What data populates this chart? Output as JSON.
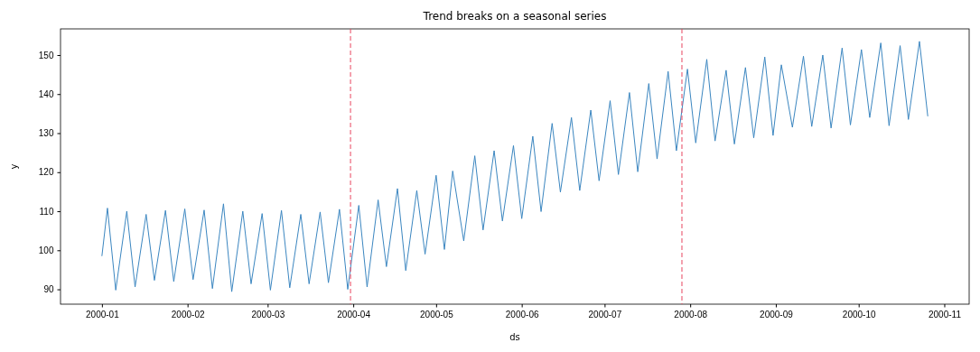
{
  "chart_data": {
    "type": "line",
    "title": "Trend breaks on a seasonal series",
    "xlabel": "ds",
    "ylabel": "y",
    "x": [
      "2000-01-01",
      "2000-01-03",
      "2000-01-06",
      "2000-01-10",
      "2000-01-13",
      "2000-01-17",
      "2000-01-20",
      "2000-01-24",
      "2000-01-27",
      "2000-01-31",
      "2000-02-03",
      "2000-02-07",
      "2000-02-10",
      "2000-02-14",
      "2000-02-17",
      "2000-02-21",
      "2000-02-24",
      "2000-02-28",
      "2000-03-02",
      "2000-03-06",
      "2000-03-09",
      "2000-03-13",
      "2000-03-16",
      "2000-03-20",
      "2000-03-23",
      "2000-03-27",
      "2000-03-30",
      "2000-04-03",
      "2000-04-06",
      "2000-04-10",
      "2000-04-13",
      "2000-04-17",
      "2000-04-20",
      "2000-04-24",
      "2000-04-27",
      "2000-05-01",
      "2000-05-04",
      "2000-05-07",
      "2000-05-11",
      "2000-05-15",
      "2000-05-18",
      "2000-05-22",
      "2000-05-25",
      "2000-05-29",
      "2000-06-01",
      "2000-06-05",
      "2000-06-08",
      "2000-06-12",
      "2000-06-15",
      "2000-06-19",
      "2000-06-22",
      "2000-06-26",
      "2000-06-29",
      "2000-07-03",
      "2000-07-06",
      "2000-07-10",
      "2000-07-13",
      "2000-07-17",
      "2000-07-20",
      "2000-07-24",
      "2000-07-27",
      "2000-07-31",
      "2000-08-03",
      "2000-08-07",
      "2000-08-10",
      "2000-08-14",
      "2000-08-17",
      "2000-08-21",
      "2000-08-24",
      "2000-08-28",
      "2000-08-31",
      "2000-09-03",
      "2000-09-07",
      "2000-09-11",
      "2000-09-14",
      "2000-09-18",
      "2000-09-21",
      "2000-09-25",
      "2000-09-28",
      "2000-10-02",
      "2000-10-05",
      "2000-10-09",
      "2000-10-12",
      "2000-10-16",
      "2000-10-19",
      "2000-10-23",
      "2000-10-26"
    ],
    "series": [
      {
        "color": "#3b86c0",
        "values": [
          98.6,
          110.8,
          89.8,
          110,
          90.6,
          109.2,
          92.3,
          110.2,
          92,
          110.6,
          92.5,
          110.3,
          90.2,
          111.9,
          89.4,
          110,
          91.4,
          109.4,
          89.8,
          110.2,
          90.4,
          109.2,
          91.4,
          109.8,
          91.7,
          110.5,
          90,
          111.5,
          90.6,
          112.9,
          95.8,
          115.8,
          94.8,
          115.3,
          99,
          119.2,
          100.2,
          120.3,
          102.4,
          124.2,
          105.2,
          125.5,
          107.5,
          126.8,
          108.1,
          129.2,
          109.9,
          132.5,
          114.9,
          134,
          115.3,
          135.9,
          117.8,
          138.3,
          119.4,
          140.4,
          120.1,
          142.7,
          123.4,
          145.8,
          125.5,
          146.4,
          127.5,
          148.9,
          128,
          146.1,
          127.2,
          146.8,
          128.8,
          149.5,
          129.4,
          147.5,
          131.5,
          149.7,
          131.7,
          150,
          131.3,
          151.8,
          132.1,
          151.4,
          134,
          153.1,
          131.9,
          152.4,
          133.5,
          153.5,
          134.4
        ]
      }
    ],
    "xlim": [
      "1999-12-17",
      "2000-11-10"
    ],
    "xticks": [
      "2000-01",
      "2000-02",
      "2000-03",
      "2000-04",
      "2000-05",
      "2000-06",
      "2000-07",
      "2000-08",
      "2000-09",
      "2000-10",
      "2000-11"
    ],
    "ylim": [
      86.2,
      156.7
    ],
    "yticks": [
      90,
      100,
      110,
      120,
      130,
      140,
      150
    ],
    "ref_lines": [
      {
        "axis": "x",
        "value": "2000-03-31",
        "color": "#e8455f",
        "line_style": "dashed"
      },
      {
        "axis": "x",
        "value": "2000-07-29",
        "color": "#e8455f",
        "line_style": "dashed"
      }
    ]
  }
}
